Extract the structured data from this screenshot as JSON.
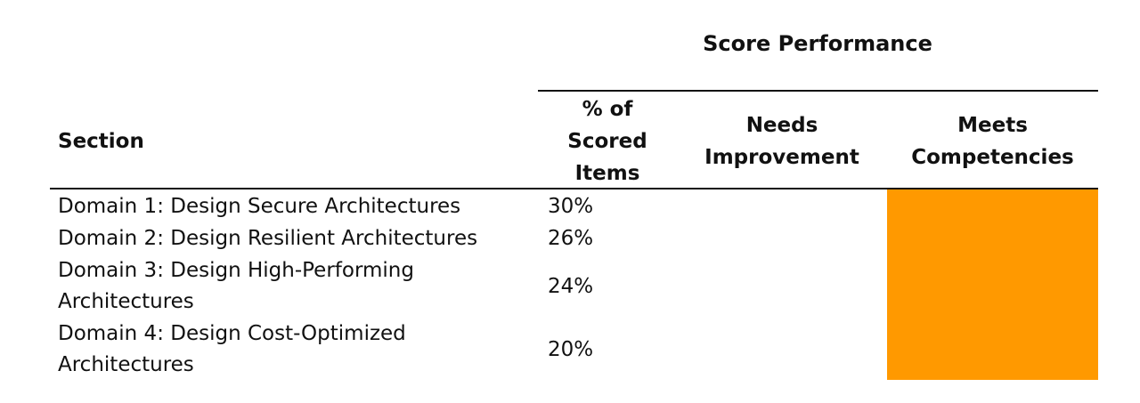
{
  "table": {
    "group_header": "Score Performance",
    "columns": {
      "section": "Section",
      "pct_line1": "% of",
      "pct_line2": "Scored",
      "pct_line3": "Items",
      "needs_line1": "Needs",
      "needs_line2": "Improvement",
      "meets_line1": "Meets",
      "meets_line2": "Competencies"
    },
    "rows": [
      {
        "name_line1": "Domain 1: Design Secure Architectures",
        "name_line2": "",
        "pct": "30%"
      },
      {
        "name_line1": "Domain 2: Design Resilient Architectures",
        "name_line2": "",
        "pct": "26%"
      },
      {
        "name_line1": "Domain 3: Design High-Performing",
        "name_line2": "Architectures",
        "pct": "24%"
      },
      {
        "name_line1": "Domain 4: Design Cost-Optimized",
        "name_line2": "Architectures",
        "pct": "20%"
      }
    ],
    "meets_highlight_color": "#ff9900"
  }
}
